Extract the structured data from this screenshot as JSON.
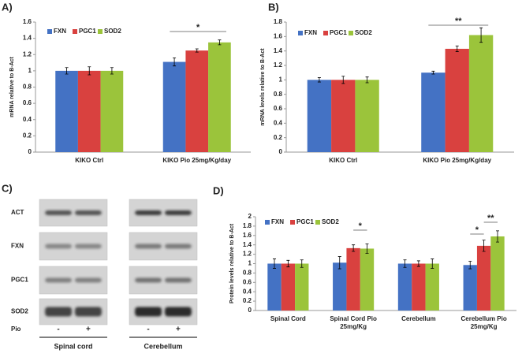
{
  "chart_data": [
    {
      "type": "bar",
      "panel": "A)",
      "y_label": "mRNA relative to B-Act",
      "categories": [
        "KIKO Ctrl",
        "KIKO Pio 25mg/Kg/day"
      ],
      "series": [
        {
          "name": "FXN",
          "color": "#4472c4",
          "values": [
            1.0,
            1.11
          ],
          "errors": [
            0.04,
            0.05
          ]
        },
        {
          "name": "PGC1",
          "color": "#d9413f",
          "values": [
            1.0,
            1.25
          ],
          "errors": [
            0.05,
            0.02
          ]
        },
        {
          "name": "SOD2",
          "color": "#9bc43b",
          "values": [
            1.0,
            1.35
          ],
          "errors": [
            0.04,
            0.03
          ]
        }
      ],
      "ylim": [
        0,
        1.6
      ],
      "yticks": [
        0,
        0.2,
        0.4,
        0.6,
        0.8,
        1,
        1.2,
        1.4,
        1.6
      ],
      "significance": [
        "*"
      ]
    },
    {
      "type": "bar",
      "panel": "B)",
      "y_label": "mRNA levels relative to B-Act",
      "categories": [
        "KIKO Ctrl",
        "KIKO Pio 25mg/Kg/day"
      ],
      "series": [
        {
          "name": "FXN",
          "color": "#4472c4",
          "values": [
            1.0,
            1.1
          ],
          "errors": [
            0.03,
            0.02
          ]
        },
        {
          "name": "PGC1",
          "color": "#d9413f",
          "values": [
            1.0,
            1.43
          ],
          "errors": [
            0.05,
            0.04
          ]
        },
        {
          "name": "SOD2",
          "color": "#9bc43b",
          "values": [
            1.0,
            1.62
          ],
          "errors": [
            0.04,
            0.1
          ]
        }
      ],
      "ylim": [
        0,
        1.8
      ],
      "yticks": [
        0,
        0.2,
        0.4,
        0.6,
        0.8,
        1,
        1.2,
        1.4,
        1.6,
        1.8
      ],
      "significance": [
        "**"
      ]
    },
    {
      "type": "bar",
      "panel": "D)",
      "y_label": "Protein levels relative to B-Act",
      "categories": [
        "Spinal Cord",
        "Spinal Cord Pio 25mg/Kg",
        "Cerebellum",
        "Cerebellum Pio 25mg/Kg"
      ],
      "series": [
        {
          "name": "FXN",
          "color": "#4472c4",
          "values": [
            1.0,
            1.02,
            1.0,
            0.97
          ],
          "errors": [
            0.1,
            0.13,
            0.08,
            0.08
          ]
        },
        {
          "name": "PGC1",
          "color": "#d9413f",
          "values": [
            1.0,
            1.33,
            1.0,
            1.38
          ],
          "errors": [
            0.07,
            0.07,
            0.06,
            0.12
          ]
        },
        {
          "name": "SOD2",
          "color": "#9bc43b",
          "values": [
            1.0,
            1.32,
            1.0,
            1.58
          ],
          "errors": [
            0.08,
            0.1,
            0.1,
            0.12
          ]
        }
      ],
      "ylim": [
        0,
        2
      ],
      "yticks": [
        0,
        0.2,
        0.4,
        0.6,
        0.8,
        1,
        1.2,
        1.4,
        1.6,
        1.8,
        2
      ],
      "significance": [
        "*",
        "*",
        "**"
      ]
    }
  ],
  "blot": {
    "panel": "C)",
    "rows": [
      "ACT",
      "FXN",
      "PGC1",
      "SOD2"
    ],
    "treatment": "Pio",
    "lanes": [
      "-",
      "+"
    ],
    "groups": [
      "Spinal cord",
      "Cerebellum"
    ]
  }
}
